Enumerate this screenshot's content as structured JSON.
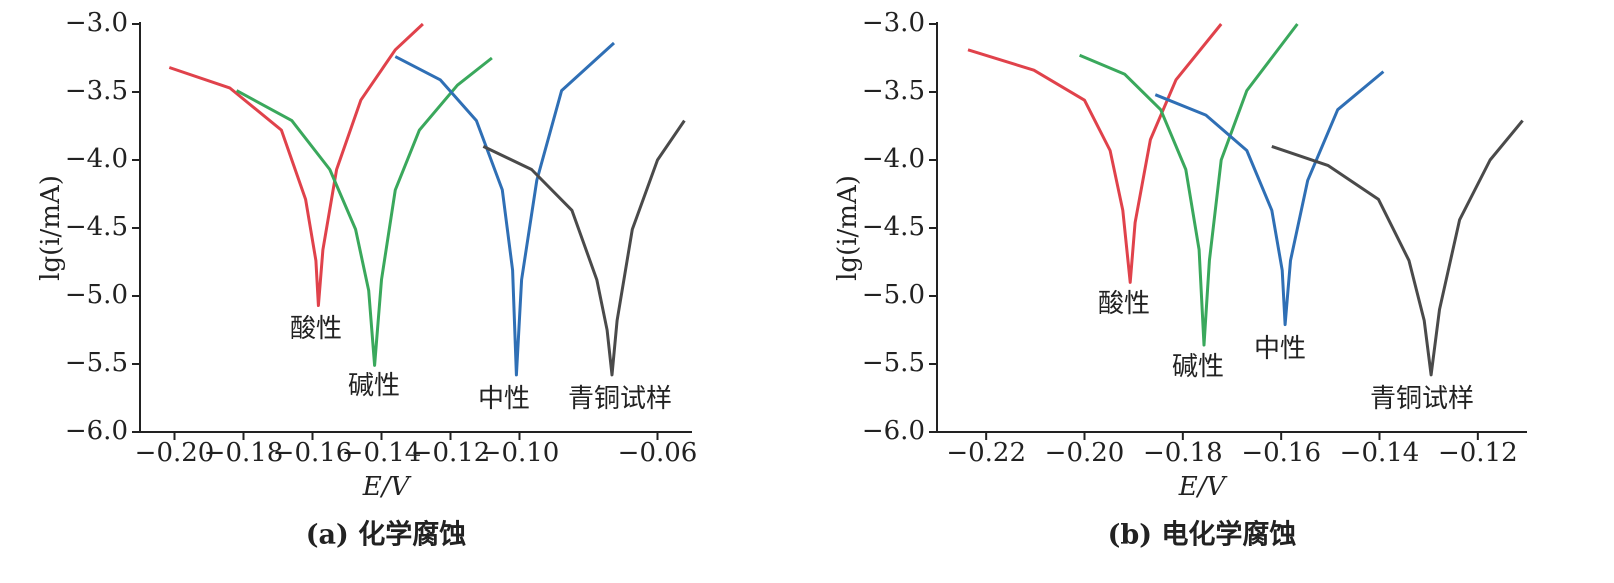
{
  "chart_data": [
    {
      "type": "line",
      "title": "(a) 化学腐蚀",
      "x_label": "E/V",
      "y_label": "lg(i/mA)",
      "xlim": [
        -0.21,
        -0.05
      ],
      "ylim": [
        -6.0,
        -3.0
      ],
      "xticks": [
        {
          "value": -0.2,
          "label": "−0.20"
        },
        {
          "value": -0.18,
          "label": "−0.18"
        },
        {
          "value": -0.16,
          "label": "−0.16"
        },
        {
          "value": -0.14,
          "label": "−0.14"
        },
        {
          "value": -0.12,
          "label": "−0.12"
        },
        {
          "value": -0.1,
          "label": "−0.10"
        },
        {
          "value": -0.06,
          "label": "−0.06"
        }
      ],
      "yticks": [
        {
          "value": -6.0,
          "label": "−6.0"
        },
        {
          "value": -5.5,
          "label": "−5.5"
        },
        {
          "value": -5.0,
          "label": "−5.0"
        },
        {
          "value": -4.5,
          "label": "−4.5"
        },
        {
          "value": -4.0,
          "label": "−4.0"
        },
        {
          "value": -3.5,
          "label": "−3.5"
        },
        {
          "value": -3.0,
          "label": "−3.0"
        }
      ],
      "series": [
        {
          "name": "酸性",
          "color": "#e0424b",
          "x": [
            -0.2015,
            -0.184,
            -0.169,
            -0.162,
            -0.159,
            -0.1583,
            -0.157,
            -0.153,
            -0.146,
            -0.136,
            -0.128
          ],
          "values": [
            -3.32,
            -3.47,
            -3.78,
            -4.29,
            -4.74,
            -5.07,
            -4.66,
            -4.07,
            -3.56,
            -3.19,
            -3.0
          ]
        },
        {
          "name": "碱性",
          "color": "#3aa85c",
          "x": [
            -0.182,
            -0.166,
            -0.155,
            -0.1475,
            -0.1437,
            -0.142,
            -0.14,
            -0.136,
            -0.129,
            -0.118,
            -0.108
          ],
          "values": [
            -3.49,
            -3.71,
            -4.07,
            -4.51,
            -4.96,
            -5.51,
            -4.88,
            -4.22,
            -3.78,
            -3.45,
            -3.25
          ]
        },
        {
          "name": "中性",
          "color": "#2f6fb5",
          "x": [
            -0.136,
            -0.123,
            -0.1125,
            -0.105,
            -0.102,
            -0.1009,
            -0.0994,
            -0.095,
            -0.0878,
            -0.0726
          ],
          "values": [
            -3.24,
            -3.41,
            -3.71,
            -4.22,
            -4.81,
            -5.58,
            -4.88,
            -4.15,
            -3.49,
            -3.14
          ]
        },
        {
          "name": "青铜试样",
          "color": "#4a4a4a",
          "x": [
            -0.1105,
            -0.0965,
            -0.0848,
            -0.0776,
            -0.0746,
            -0.0732,
            -0.0717,
            -0.0673,
            -0.06,
            -0.0522
          ],
          "values": [
            -3.9,
            -4.07,
            -4.37,
            -4.88,
            -5.25,
            -5.58,
            -5.18,
            -4.51,
            -4.0,
            -3.71
          ]
        }
      ]
    },
    {
      "type": "line",
      "title": "(b) 电化学腐蚀",
      "x_label": "E/V",
      "y_label": "lg(i/mA)",
      "xlim": [
        -0.23,
        -0.11
      ],
      "ylim": [
        -6.0,
        -3.0
      ],
      "xticks": [
        {
          "value": -0.22,
          "label": "−0.22"
        },
        {
          "value": -0.2,
          "label": "−0.20"
        },
        {
          "value": -0.18,
          "label": "−0.18"
        },
        {
          "value": -0.16,
          "label": "−0.16"
        },
        {
          "value": -0.14,
          "label": "−0.14"
        },
        {
          "value": -0.12,
          "label": "−0.12"
        }
      ],
      "yticks": [
        {
          "value": -6.0,
          "label": "−6.0"
        },
        {
          "value": -5.5,
          "label": "−5.5"
        },
        {
          "value": -5.0,
          "label": "−5.0"
        },
        {
          "value": -4.5,
          "label": "−4.5"
        },
        {
          "value": -4.0,
          "label": "−4.0"
        },
        {
          "value": -3.5,
          "label": "−3.5"
        },
        {
          "value": -3.0,
          "label": "−3.0"
        }
      ],
      "series": [
        {
          "name": "酸性",
          "color": "#e0424b",
          "x": [
            -0.2237,
            -0.2103,
            -0.2,
            -0.1948,
            -0.1922,
            -0.1907,
            -0.1897,
            -0.1866,
            -0.1814,
            -0.1722
          ],
          "values": [
            -3.19,
            -3.34,
            -3.56,
            -3.93,
            -4.37,
            -4.9,
            -4.46,
            -3.85,
            -3.41,
            -3.0
          ]
        },
        {
          "name": "碱性",
          "color": "#3aa85c",
          "x": [
            -0.201,
            -0.1918,
            -0.1845,
            -0.1794,
            -0.1767,
            -0.1757,
            -0.1746,
            -0.1722,
            -0.167,
            -0.1567
          ],
          "values": [
            -3.23,
            -3.37,
            -3.63,
            -4.07,
            -4.66,
            -5.36,
            -4.74,
            -4.0,
            -3.49,
            -3.0
          ]
        },
        {
          "name": "中性",
          "color": "#2f6fb5",
          "x": [
            -0.1856,
            -0.1753,
            -0.167,
            -0.1619,
            -0.1598,
            -0.1592,
            -0.1581,
            -0.1546,
            -0.1485,
            -0.1392
          ],
          "values": [
            -3.52,
            -3.67,
            -3.93,
            -4.37,
            -4.81,
            -5.21,
            -4.74,
            -4.15,
            -3.63,
            -3.35
          ]
        },
        {
          "name": "青铜试样",
          "color": "#4a4a4a",
          "x": [
            -0.1619,
            -0.1505,
            -0.1402,
            -0.134,
            -0.1309,
            -0.1295,
            -0.1278,
            -0.1237,
            -0.1175,
            -0.1109
          ],
          "values": [
            -3.9,
            -4.04,
            -4.29,
            -4.74,
            -5.18,
            -5.58,
            -5.1,
            -4.44,
            -4.0,
            -3.71
          ]
        }
      ]
    }
  ]
}
